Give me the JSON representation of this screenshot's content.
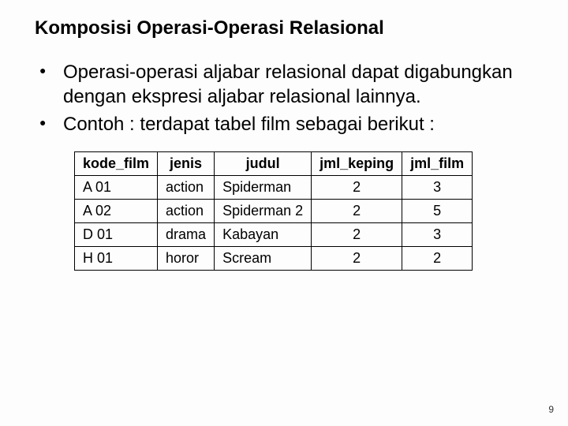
{
  "title": "Komposisi Operasi-Operasi Relasional",
  "bullets": [
    "Operasi-operasi aljabar relasional dapat digabungkan dengan ekspresi aljabar relasional lainnya.",
    "Contoh : terdapat tabel film sebagai berikut :"
  ],
  "table": {
    "columns": [
      "kode_film",
      "jenis",
      "judul",
      "jml_keping",
      "jml_film"
    ],
    "rows": [
      [
        "A 01",
        "action",
        "Spiderman",
        "2",
        "3"
      ],
      [
        "A 02",
        "action",
        "Spiderman 2",
        "2",
        "5"
      ],
      [
        "D 01",
        "drama",
        "Kabayan",
        "2",
        "3"
      ],
      [
        "H 01",
        "horor",
        "Scream",
        "2",
        "2"
      ]
    ],
    "center_cols": [
      3,
      4
    ]
  },
  "page_number": "9"
}
